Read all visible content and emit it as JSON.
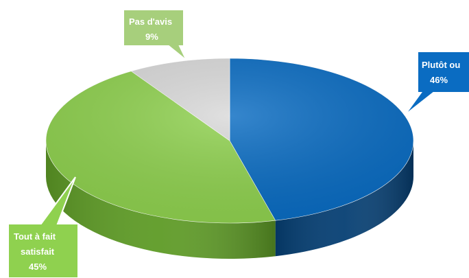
{
  "chart_data": {
    "type": "pie",
    "style": "3d",
    "title": "",
    "slices": [
      {
        "label_line1": "Plutôt ou",
        "label_line2": "",
        "value_label": "46%",
        "value": 46,
        "color": "#0a6cc2",
        "side_color": "#063f73"
      },
      {
        "label_line1": "Tout à fait",
        "label_line2": "satisfait",
        "value_label": "45%",
        "value": 45,
        "color": "#8fd14f",
        "side_color": "#5e9b26"
      },
      {
        "label_line1": "Pas d'avis",
        "label_line2": "",
        "value_label": "9%",
        "value": 9,
        "color": "#d9d9d9",
        "side_color": "#a6a6a6"
      }
    ],
    "callout_border": "#ffffff"
  }
}
